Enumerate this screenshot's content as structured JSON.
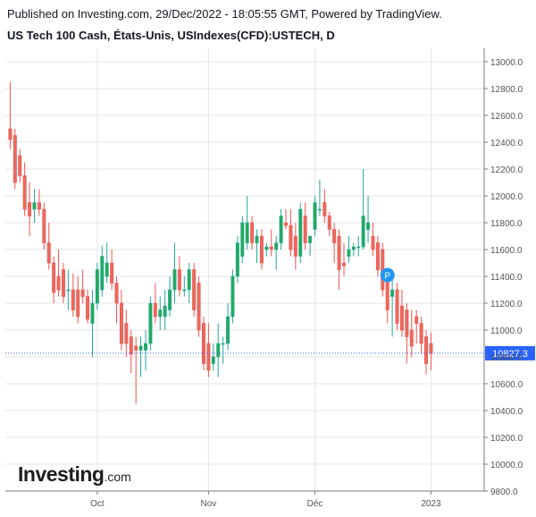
{
  "header": {
    "published": "Published on Investing.com, 29/Dec/2022 - 18:05:55 GMT, Powered by TradingView.",
    "title": "US Tech 100 Cash, États-Unis, USIndexes(CFD):USTECH, D"
  },
  "logo": {
    "word": "Investing",
    "domain": ".com"
  },
  "colors": {
    "up": "#26a69a",
    "up_fill": "#22ab5a",
    "down": "#ef5350",
    "down_fill": "#e96a5d",
    "grid": "#e6e6e6",
    "axis_text": "#555555",
    "last_price_bg": "#2962ff",
    "marker": "#2196f3"
  },
  "chart_data": {
    "type": "candlestick",
    "title": "US Tech 100 Cash, États-Unis, USIndexes(CFD):USTECH, D",
    "ylim": [
      9800,
      13100
    ],
    "y_ticks": [
      "13000.0",
      "12800.0",
      "12600.0",
      "12400.0",
      "12200.0",
      "12000.0",
      "11800.0",
      "11600.0",
      "11400.0",
      "11200.0",
      "11000.0",
      "10800.0",
      "10600.0",
      "10400.0",
      "10200.0",
      "10000.0",
      "9800.0"
    ],
    "x_ticks": [
      {
        "label": "Oct",
        "index": 18
      },
      {
        "label": "Nov",
        "index": 41
      },
      {
        "label": "Déc",
        "index": 63
      },
      {
        "label": "2023",
        "index": 87
      }
    ],
    "x_range": [
      -1,
      98
    ],
    "last_price": "10827.3",
    "marker": {
      "label": "P",
      "index": 78,
      "price": 11410
    },
    "candles": [
      {
        "o": 12500,
        "h": 12850,
        "l": 12350,
        "c": 12420
      },
      {
        "o": 12450,
        "h": 12500,
        "l": 12050,
        "c": 12100
      },
      {
        "o": 12300,
        "h": 12350,
        "l": 12100,
        "c": 12150
      },
      {
        "o": 12150,
        "h": 12250,
        "l": 11850,
        "c": 11900
      },
      {
        "o": 11950,
        "h": 12100,
        "l": 11700,
        "c": 11850
      },
      {
        "o": 11900,
        "h": 12050,
        "l": 11800,
        "c": 11950
      },
      {
        "o": 11950,
        "h": 12050,
        "l": 11850,
        "c": 11900
      },
      {
        "o": 11900,
        "h": 11950,
        "l": 11600,
        "c": 11650
      },
      {
        "o": 11650,
        "h": 11800,
        "l": 11450,
        "c": 11500
      },
      {
        "o": 11500,
        "h": 11550,
        "l": 11200,
        "c": 11280
      },
      {
        "o": 11400,
        "h": 11600,
        "l": 11250,
        "c": 11300
      },
      {
        "o": 11450,
        "h": 11500,
        "l": 11200,
        "c": 11250
      },
      {
        "o": 11300,
        "h": 11450,
        "l": 11150,
        "c": 11300
      },
      {
        "o": 11300,
        "h": 11420,
        "l": 11100,
        "c": 11150
      },
      {
        "o": 11300,
        "h": 11400,
        "l": 11050,
        "c": 11100
      },
      {
        "o": 11300,
        "h": 11450,
        "l": 11200,
        "c": 11250
      },
      {
        "o": 11250,
        "h": 11300,
        "l": 11050,
        "c": 11080
      },
      {
        "o": 11050,
        "h": 11300,
        "l": 10800,
        "c": 11200
      },
      {
        "o": 11200,
        "h": 11500,
        "l": 11150,
        "c": 11450
      },
      {
        "o": 11300,
        "h": 11630,
        "l": 11250,
        "c": 11550
      },
      {
        "o": 11400,
        "h": 11650,
        "l": 11350,
        "c": 11500
      },
      {
        "o": 11500,
        "h": 11600,
        "l": 11300,
        "c": 11350
      },
      {
        "o": 11350,
        "h": 11400,
        "l": 11050,
        "c": 11200
      },
      {
        "o": 11200,
        "h": 11300,
        "l": 10850,
        "c": 10900
      },
      {
        "o": 11050,
        "h": 11150,
        "l": 10800,
        "c": 10900
      },
      {
        "o": 10950,
        "h": 11000,
        "l": 10680,
        "c": 10820
      },
      {
        "o": 10880,
        "h": 10950,
        "l": 10450,
        "c": 10850
      },
      {
        "o": 10850,
        "h": 10950,
        "l": 10650,
        "c": 10880
      },
      {
        "o": 10850,
        "h": 11000,
        "l": 10700,
        "c": 10900
      },
      {
        "o": 10900,
        "h": 11250,
        "l": 10850,
        "c": 11200
      },
      {
        "o": 11200,
        "h": 11350,
        "l": 11050,
        "c": 11100
      },
      {
        "o": 11100,
        "h": 11250,
        "l": 11000,
        "c": 11150
      },
      {
        "o": 11100,
        "h": 11300,
        "l": 11000,
        "c": 11180
      },
      {
        "o": 11150,
        "h": 11400,
        "l": 11100,
        "c": 11300
      },
      {
        "o": 11300,
        "h": 11650,
        "l": 11200,
        "c": 11450
      },
      {
        "o": 11450,
        "h": 11550,
        "l": 11250,
        "c": 11300
      },
      {
        "o": 11300,
        "h": 11400,
        "l": 11250,
        "c": 11300
      },
      {
        "o": 11300,
        "h": 11500,
        "l": 11200,
        "c": 11450
      },
      {
        "o": 11450,
        "h": 11500,
        "l": 11100,
        "c": 11150
      },
      {
        "o": 11350,
        "h": 11400,
        "l": 10950,
        "c": 11000
      },
      {
        "o": 11050,
        "h": 11100,
        "l": 10700,
        "c": 10750
      },
      {
        "o": 10900,
        "h": 11050,
        "l": 10650,
        "c": 10700
      },
      {
        "o": 10750,
        "h": 10900,
        "l": 10700,
        "c": 10800
      },
      {
        "o": 10800,
        "h": 11050,
        "l": 10650,
        "c": 10900
      },
      {
        "o": 10900,
        "h": 10950,
        "l": 10750,
        "c": 10900
      },
      {
        "o": 10900,
        "h": 11200,
        "l": 10850,
        "c": 11100
      },
      {
        "o": 11100,
        "h": 11450,
        "l": 11050,
        "c": 11400
      },
      {
        "o": 11400,
        "h": 11700,
        "l": 11350,
        "c": 11650
      },
      {
        "o": 11550,
        "h": 11850,
        "l": 11500,
        "c": 11800
      },
      {
        "o": 11650,
        "h": 12000,
        "l": 11600,
        "c": 11800
      },
      {
        "o": 11800,
        "h": 11850,
        "l": 11600,
        "c": 11650
      },
      {
        "o": 11650,
        "h": 11750,
        "l": 11500,
        "c": 11700
      },
      {
        "o": 11700,
        "h": 11750,
        "l": 11450,
        "c": 11500
      },
      {
        "o": 11600,
        "h": 11650,
        "l": 11550,
        "c": 11620
      },
      {
        "o": 11620,
        "h": 11750,
        "l": 11550,
        "c": 11600
      },
      {
        "o": 11600,
        "h": 11700,
        "l": 11450,
        "c": 11650
      },
      {
        "o": 11650,
        "h": 11900,
        "l": 11600,
        "c": 11850
      },
      {
        "o": 11800,
        "h": 11900,
        "l": 11750,
        "c": 11780
      },
      {
        "o": 11780,
        "h": 11900,
        "l": 11550,
        "c": 11600
      },
      {
        "o": 11700,
        "h": 11800,
        "l": 11450,
        "c": 11550
      },
      {
        "o": 11550,
        "h": 11950,
        "l": 11500,
        "c": 11900
      },
      {
        "o": 11850,
        "h": 11950,
        "l": 11600,
        "c": 11650
      },
      {
        "o": 11650,
        "h": 11700,
        "l": 11550,
        "c": 11700
      },
      {
        "o": 11750,
        "h": 12000,
        "l": 11700,
        "c": 11950
      },
      {
        "o": 11900,
        "h": 12120,
        "l": 11850,
        "c": 11900
      },
      {
        "o": 11950,
        "h": 12050,
        "l": 11800,
        "c": 11850
      },
      {
        "o": 11850,
        "h": 11880,
        "l": 11700,
        "c": 11750
      },
      {
        "o": 11750,
        "h": 11800,
        "l": 11500,
        "c": 11650
      },
      {
        "o": 11700,
        "h": 11750,
        "l": 11300,
        "c": 11450
      },
      {
        "o": 11500,
        "h": 11650,
        "l": 11400,
        "c": 11480
      },
      {
        "o": 11550,
        "h": 11700,
        "l": 11500,
        "c": 11600
      },
      {
        "o": 11600,
        "h": 11650,
        "l": 11550,
        "c": 11620
      },
      {
        "o": 11620,
        "h": 11700,
        "l": 11550,
        "c": 11620
      },
      {
        "o": 11620,
        "h": 12200,
        "l": 11600,
        "c": 11850
      },
      {
        "o": 11750,
        "h": 12000,
        "l": 11650,
        "c": 11800
      },
      {
        "o": 11700,
        "h": 11800,
        "l": 11550,
        "c": 11600
      },
      {
        "o": 11650,
        "h": 11700,
        "l": 11400,
        "c": 11450
      },
      {
        "o": 11600,
        "h": 11650,
        "l": 11250,
        "c": 11300
      },
      {
        "o": 11400,
        "h": 11450,
        "l": 11050,
        "c": 11150
      },
      {
        "o": 11250,
        "h": 11380,
        "l": 10950,
        "c": 11300
      },
      {
        "o": 11300,
        "h": 11350,
        "l": 11000,
        "c": 11050
      },
      {
        "o": 11180,
        "h": 11300,
        "l": 10950,
        "c": 11000
      },
      {
        "o": 11150,
        "h": 11200,
        "l": 10750,
        "c": 10950
      },
      {
        "o": 11000,
        "h": 11150,
        "l": 10800,
        "c": 10880
      },
      {
        "o": 11100,
        "h": 11150,
        "l": 10900,
        "c": 11050
      },
      {
        "o": 11050,
        "h": 11100,
        "l": 10820,
        "c": 10900
      },
      {
        "o": 10950,
        "h": 11000,
        "l": 10670,
        "c": 10750
      },
      {
        "o": 10900,
        "h": 10980,
        "l": 10700,
        "c": 10827
      }
    ]
  }
}
